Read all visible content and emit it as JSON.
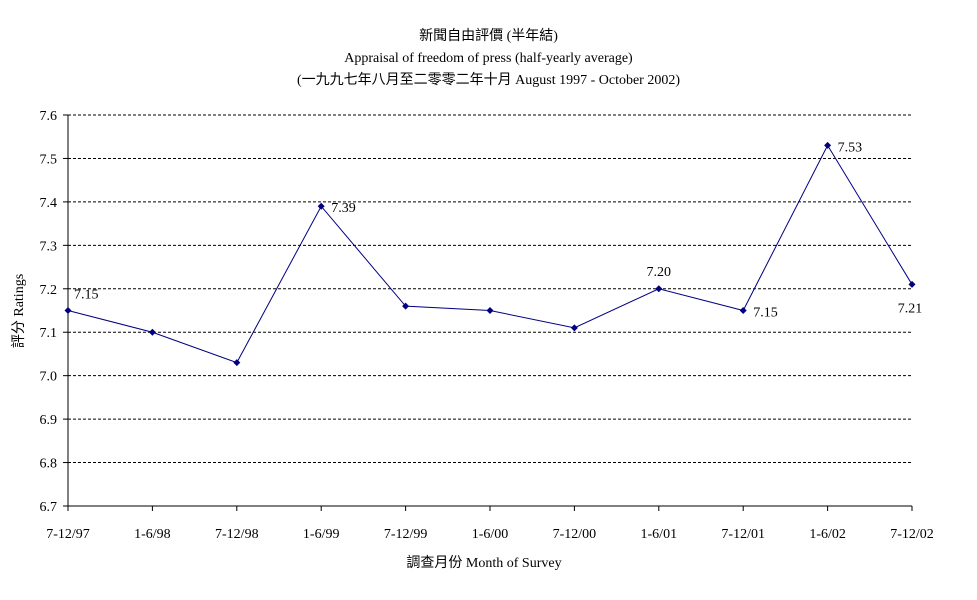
{
  "chart_data": {
    "type": "line",
    "title": "新聞自由評價 (半年結)",
    "subtitle": "Appraisal of freedom of press (half-yearly average)",
    "subtitle2": "(一九九七年八月至二零零二年十月 August 1997 - October 2002)",
    "xlabel": "調查月份 Month of Survey",
    "ylabel": "評分 Ratings",
    "ylim": [
      6.7,
      7.6
    ],
    "ytick_step": 0.1,
    "yticks": [
      "6.7",
      "6.8",
      "6.9",
      "7.0",
      "7.1",
      "7.2",
      "7.3",
      "7.4",
      "7.5",
      "7.6"
    ],
    "grid": true,
    "categories": [
      "7-12/97",
      "1-6/98",
      "7-12/98",
      "1-6/99",
      "7-12/99",
      "1-6/00",
      "7-12/00",
      "1-6/01",
      "7-12/01",
      "1-6/02",
      "7-12/02"
    ],
    "series": [
      {
        "values": [
          7.15,
          7.1,
          7.03,
          7.39,
          7.16,
          7.15,
          7.11,
          7.2,
          7.15,
          7.53,
          7.21
        ],
        "color": "#000080",
        "data_labels": [
          {
            "index": 0,
            "text": "7.15",
            "position": "right-above"
          },
          {
            "index": 3,
            "text": "7.39",
            "position": "right"
          },
          {
            "index": 7,
            "text": "7.20",
            "position": "above"
          },
          {
            "index": 8,
            "text": "7.15",
            "position": "right"
          },
          {
            "index": 9,
            "text": "7.53",
            "position": "right"
          },
          {
            "index": 10,
            "text": "7.21",
            "position": "below"
          }
        ]
      }
    ]
  }
}
